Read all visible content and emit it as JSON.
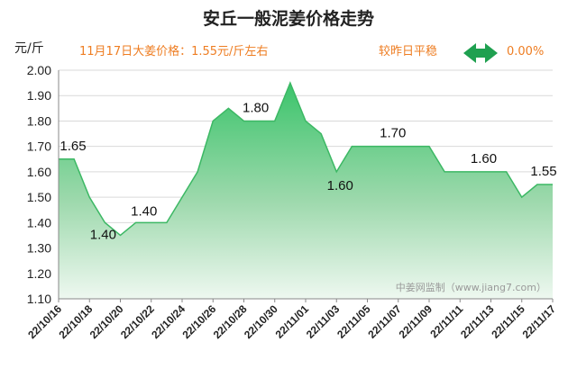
{
  "header": {
    "title": "安丘一般泥姜价格走势",
    "unit": "元/斤",
    "price_note": "11月17日大姜价格：1.55元/斤左右",
    "compare_label": "较昨日平稳",
    "change": "0.00%"
  },
  "colors": {
    "title": "#222222",
    "accent_orange": "#ee7d22",
    "line_green": "#3cb864",
    "arrow_green": "#1fa050",
    "fill_top": "#3bc46b",
    "fill_bottom": "#eef8f0"
  },
  "watermark": "中姜网监制（www.jiang7.com）",
  "chart_data": {
    "type": "area",
    "title": "安丘一般泥姜价格走势",
    "ylabel": "元/斤",
    "ylim": [
      1.1,
      2.0
    ],
    "yticks": [
      2.0,
      1.9,
      1.8,
      1.7,
      1.6,
      1.5,
      1.4,
      1.3,
      1.2,
      1.1
    ],
    "ytick_labels": [
      "2.00",
      "1.90",
      "1.80",
      "1.70",
      "1.60",
      "1.50",
      "1.40",
      "1.30",
      "1.20",
      "1.10"
    ],
    "xtick_labels": [
      "22/10/16",
      "22/10/18",
      "22/10/20",
      "22/10/22",
      "22/10/24",
      "22/10/26",
      "22/10/28",
      "22/10/30",
      "22/11/01",
      "22/11/03",
      "22/11/05",
      "22/11/07",
      "22/11/09",
      "22/11/11",
      "22/11/13",
      "22/11/15",
      "22/11/17"
    ],
    "x": [
      "22/10/16",
      "22/10/17",
      "22/10/18",
      "22/10/19",
      "22/10/20",
      "22/10/21",
      "22/10/22",
      "22/10/23",
      "22/10/24",
      "22/10/25",
      "22/10/26",
      "22/10/27",
      "22/10/28",
      "22/10/29",
      "22/10/30",
      "22/10/31",
      "22/11/01",
      "22/11/02",
      "22/11/03",
      "22/11/04",
      "22/11/05",
      "22/11/06",
      "22/11/07",
      "22/11/08",
      "22/11/09",
      "22/11/10",
      "22/11/11",
      "22/11/12",
      "22/11/13",
      "22/11/14",
      "22/11/15",
      "22/11/16",
      "22/11/17"
    ],
    "values": [
      1.65,
      1.65,
      1.5,
      1.4,
      1.35,
      1.4,
      1.4,
      1.4,
      1.5,
      1.6,
      1.8,
      1.85,
      1.8,
      1.8,
      1.8,
      1.95,
      1.8,
      1.75,
      1.6,
      1.7,
      1.7,
      1.7,
      1.7,
      1.7,
      1.7,
      1.6,
      1.6,
      1.6,
      1.6,
      1.6,
      1.5,
      1.55,
      1.55
    ],
    "data_labels": [
      {
        "x": "22/10/16",
        "text": "1.65"
      },
      {
        "x": "22/10/19",
        "text": "1.40"
      },
      {
        "x": "22/10/22",
        "text": "1.40"
      },
      {
        "x": "22/10/29",
        "text": "1.80"
      },
      {
        "x": "22/11/03",
        "text": "1.60"
      },
      {
        "x": "22/11/07",
        "text": "1.70"
      },
      {
        "x": "22/11/13",
        "text": "1.60"
      },
      {
        "x": "22/11/17",
        "text": "1.55"
      }
    ],
    "grid": true,
    "legend": "none"
  }
}
